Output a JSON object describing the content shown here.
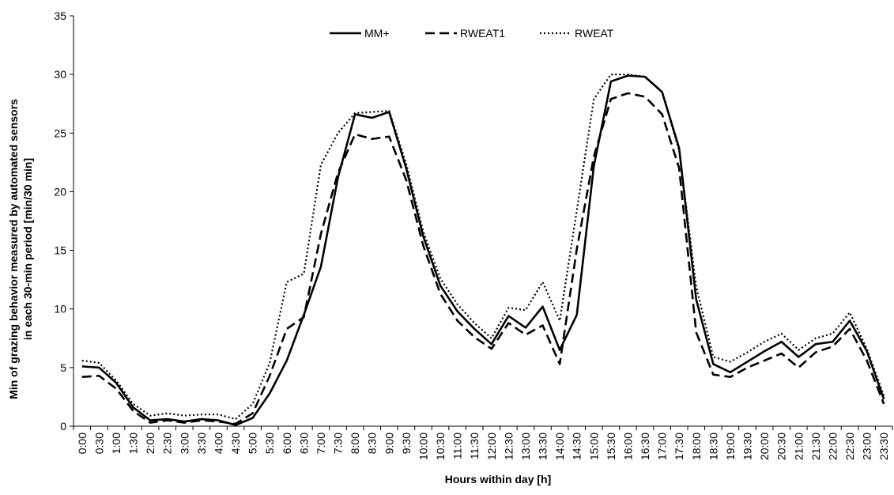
{
  "chart_data": {
    "type": "line",
    "title": "",
    "xlabel": "Hours within day [h]",
    "ylabel_lines": [
      "Min of grazing behavior measured by automated sensors",
      "in each 30-min period [min/30 min]"
    ],
    "ylim": [
      0,
      35
    ],
    "yticks": [
      0,
      5,
      10,
      15,
      20,
      25,
      30,
      35
    ],
    "grid": false,
    "legend_position": "top-center",
    "categories": [
      "0:00",
      "0:30",
      "1:00",
      "1:30",
      "2:00",
      "2:30",
      "3:00",
      "3:30",
      "4:00",
      "4:30",
      "5:00",
      "5:30",
      "6:00",
      "6:30",
      "7:00",
      "7:30",
      "8:00",
      "8:30",
      "9:00",
      "9:30",
      "10:00",
      "10:30",
      "11:00",
      "11:30",
      "12:00",
      "12:30",
      "13:00",
      "13:30",
      "14:00",
      "14:30",
      "15:00",
      "15:30",
      "16:00",
      "16:30",
      "17:00",
      "17:30",
      "18:00",
      "18:30",
      "19:00",
      "19:30",
      "20:00",
      "20:30",
      "21:00",
      "21:30",
      "22:00",
      "22:30",
      "23:00",
      "23:30"
    ],
    "series": [
      {
        "name": "MM+",
        "style": "solid",
        "color": "#000000",
        "values": [
          5.1,
          5.0,
          3.7,
          1.6,
          0.5,
          0.6,
          0.4,
          0.6,
          0.5,
          0.1,
          0.7,
          2.8,
          5.6,
          9.5,
          13.6,
          21.2,
          26.6,
          26.3,
          26.8,
          22.0,
          16.2,
          12.0,
          9.8,
          8.3,
          7.0,
          9.4,
          8.4,
          10.2,
          6.5,
          9.5,
          22.2,
          29.4,
          29.9,
          29.8,
          28.5,
          23.7,
          10.8,
          5.3,
          4.6,
          5.5,
          6.4,
          7.2,
          5.9,
          7.0,
          7.2,
          9.0,
          6.4,
          2.3
        ]
      },
      {
        "name": "RWEAT1",
        "style": "dashed",
        "color": "#000000",
        "values": [
          4.2,
          4.3,
          3.2,
          1.3,
          0.3,
          0.5,
          0.3,
          0.5,
          0.4,
          0.2,
          1.1,
          4.3,
          8.3,
          9.3,
          16.4,
          21.6,
          24.9,
          24.5,
          24.7,
          21.0,
          15.4,
          11.3,
          9.0,
          7.6,
          6.6,
          8.8,
          7.8,
          8.6,
          5.3,
          15.1,
          23.0,
          27.9,
          28.4,
          28.1,
          26.6,
          22.0,
          8.0,
          4.4,
          4.2,
          5.0,
          5.6,
          6.2,
          5.0,
          6.3,
          6.8,
          8.3,
          5.6,
          1.9
        ]
      },
      {
        "name": "RWEAT",
        "style": "dotted",
        "color": "#000000",
        "values": [
          5.6,
          5.4,
          3.9,
          1.9,
          0.9,
          1.1,
          0.9,
          1.0,
          1.0,
          0.6,
          1.9,
          5.4,
          12.3,
          13.0,
          22.3,
          25.0,
          26.7,
          26.8,
          26.9,
          22.4,
          16.6,
          12.6,
          10.4,
          8.8,
          7.5,
          10.1,
          9.9,
          12.3,
          9.0,
          18.4,
          27.9,
          30.0,
          30.0,
          29.8,
          28.5,
          23.5,
          11.9,
          5.9,
          5.5,
          6.3,
          7.2,
          7.9,
          6.5,
          7.5,
          7.9,
          9.7,
          6.6,
          2.6
        ]
      }
    ]
  }
}
